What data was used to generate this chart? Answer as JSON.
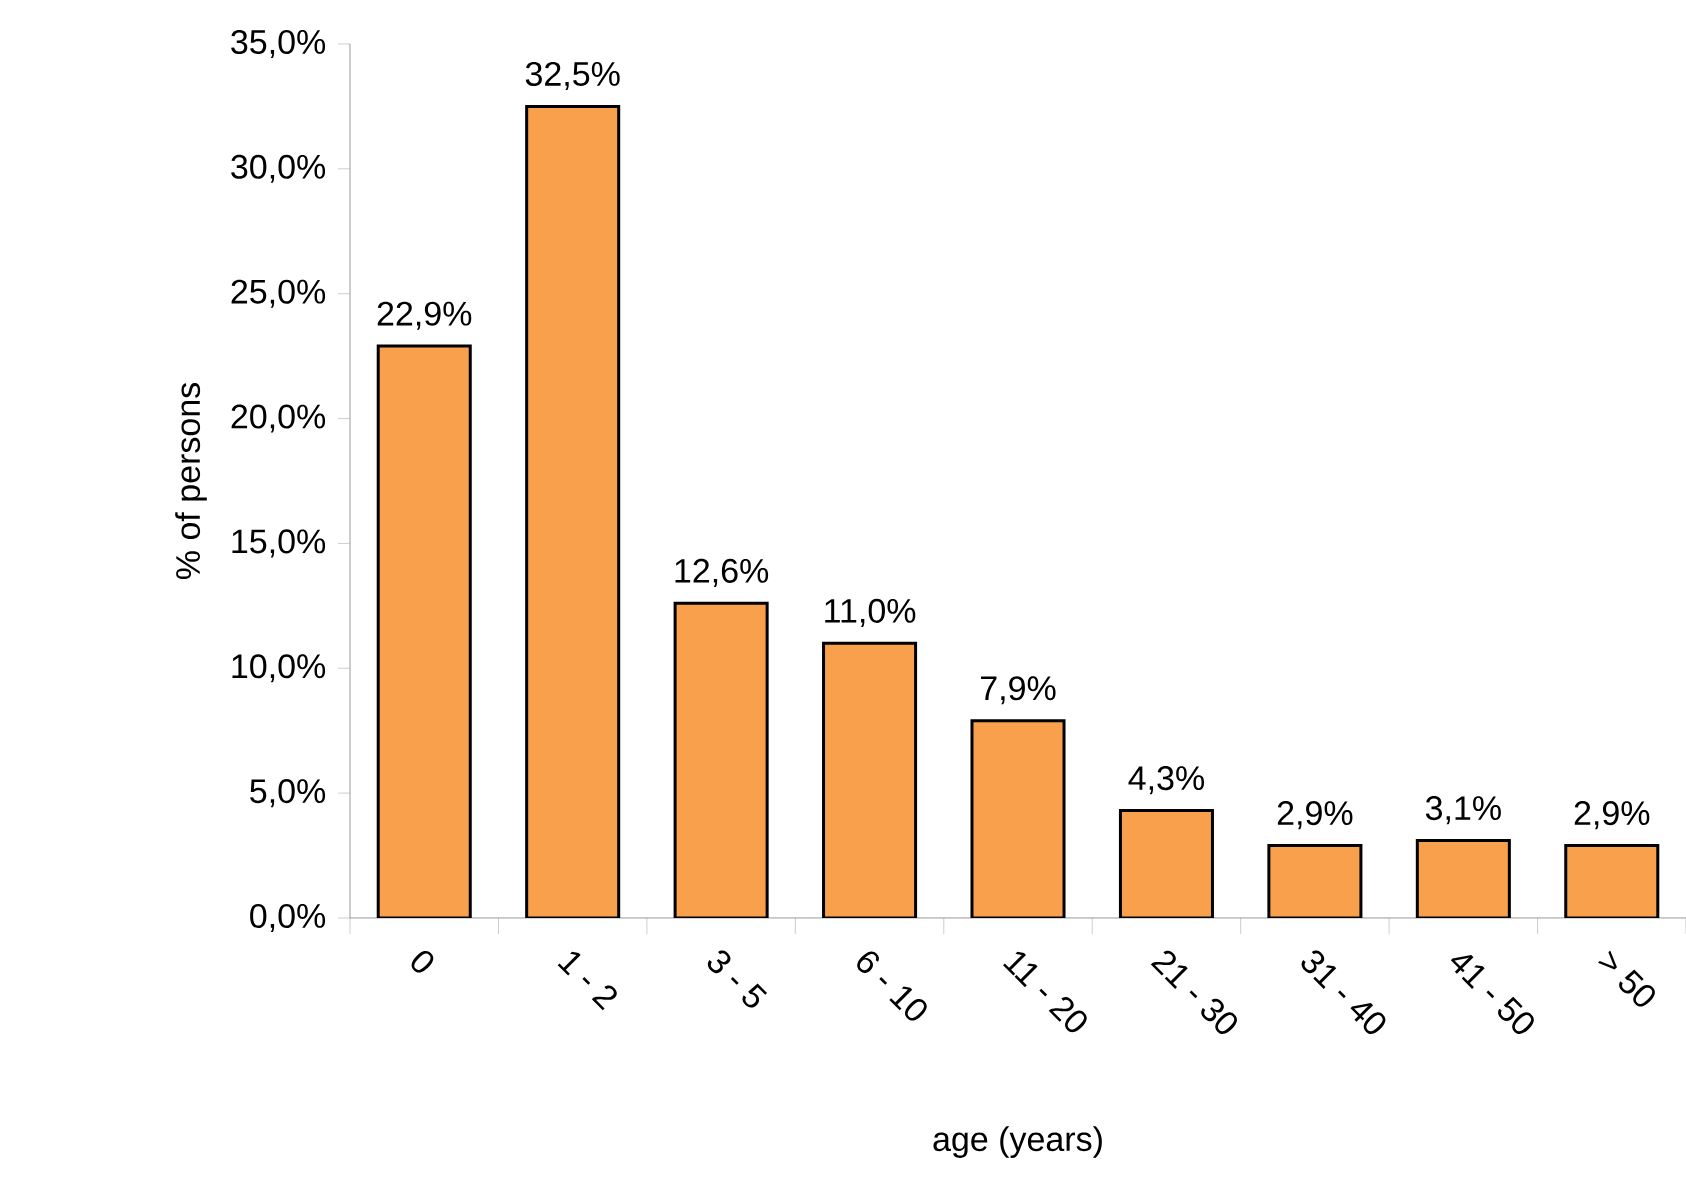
{
  "chart_data": {
    "type": "bar",
    "xlabel": "age (years)",
    "ylabel": "% of persons",
    "categories": [
      "0",
      "1 - 2",
      "3 - 5",
      "6 - 10",
      "11 - 20",
      "21 - 30",
      "31 - 40",
      "41 - 50",
      "> 50"
    ],
    "values": [
      22.9,
      32.5,
      12.6,
      11.0,
      7.9,
      4.3,
      2.9,
      3.1,
      2.9
    ],
    "value_labels": [
      "22,9%",
      "32,5%",
      "12,6%",
      "11,0%",
      "7,9%",
      "4,3%",
      "2,9%",
      "3,1%",
      "2,9%"
    ],
    "color": "#f9a04c",
    "ylim": [
      0,
      35
    ],
    "yticks": [
      {
        "value": 0,
        "label": "0,0%"
      },
      {
        "value": 5,
        "label": "5,0%"
      },
      {
        "value": 10,
        "label": "10,0%"
      },
      {
        "value": 15,
        "label": "15,0%"
      },
      {
        "value": 20,
        "label": "20,0%"
      },
      {
        "value": 25,
        "label": "25,0%"
      },
      {
        "value": 30,
        "label": "30,0%"
      },
      {
        "value": 35,
        "label": "35,0%"
      }
    ],
    "grid": false
  }
}
